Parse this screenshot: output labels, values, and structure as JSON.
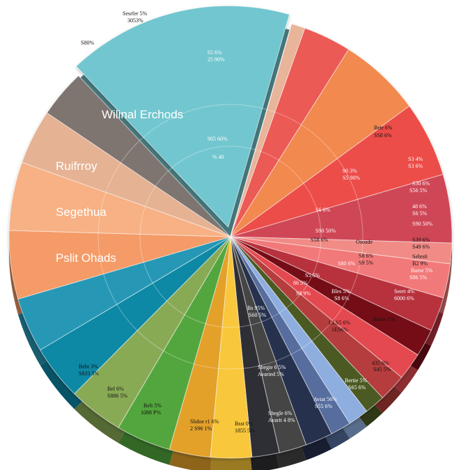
{
  "chart_data": {
    "type": "pie",
    "title": "",
    "slices": [
      {
        "label": "Wilinal Erchods",
        "value": 16.5,
        "color": "#72c6cf"
      },
      {
        "label": "",
        "value": 1.0,
        "color": "#e8b49a"
      },
      {
        "label": "",
        "value": 3.5,
        "color": "#ec5a55"
      },
      {
        "label": "",
        "value": 6.0,
        "color": "#f28950"
      },
      {
        "label": "",
        "value": 5.5,
        "color": "#ec4e4a"
      },
      {
        "label": "",
        "value": 5.0,
        "color": "#cf4757"
      },
      {
        "label": "",
        "value": 1.5,
        "color": "#f08b86"
      },
      {
        "label": "",
        "value": 2.5,
        "color": "#f27979"
      },
      {
        "label": "",
        "value": 2.5,
        "color": "#b8323d"
      },
      {
        "label": "",
        "value": 2.0,
        "color": "#750d18"
      },
      {
        "label": "",
        "value": 2.0,
        "color": "#e44a4f"
      },
      {
        "label": "",
        "value": 2.0,
        "color": "#b53c3c"
      },
      {
        "label": "",
        "value": 1.5,
        "color": "#4c5a22"
      },
      {
        "label": "",
        "value": 1.5,
        "color": "#8eaee0"
      },
      {
        "label": "",
        "value": 1.5,
        "color": "#566d9e"
      },
      {
        "label": "",
        "value": 2.0,
        "color": "#25304d"
      },
      {
        "label": "",
        "value": 2.0,
        "color": "#444444"
      },
      {
        "label": "",
        "value": 2.0,
        "color": "#2e2e34"
      },
      {
        "label": "",
        "value": 3.0,
        "color": "#f8c73a"
      },
      {
        "label": "",
        "value": 3.0,
        "color": "#e3a12a"
      },
      {
        "label": "",
        "value": 4.0,
        "color": "#52a63e"
      },
      {
        "label": "",
        "value": 4.0,
        "color": "#89aa55"
      },
      {
        "label": "",
        "value": 4.0,
        "color": "#0c88a5"
      },
      {
        "label": "",
        "value": 4.0,
        "color": "#2798b6"
      },
      {
        "label": "",
        "value": 5.0,
        "color": "#f59b67"
      },
      {
        "label": "",
        "value": 5.0,
        "color": "#f7b184"
      },
      {
        "label": "",
        "value": 4.0,
        "color": "#e5b293"
      },
      {
        "label": "",
        "value": 3.5,
        "color": "#7e7470"
      }
    ],
    "texts": {
      "top_left_a": "Sesrfer 5%",
      "top_left_b": "3053%",
      "left_small": "S80%",
      "cyan_1": "Wilinal Erchods",
      "cyan_2": "Ruifrroy",
      "cyan_3": "Segethua",
      "cyan_4": "Pslit Ohads",
      "r1a": "65 6%",
      "r1b": "25 90%",
      "r2a": "905 60%",
      "r2b": "% 40",
      "r3a": "Betr 6%",
      "r3b": "SS8 6%",
      "r4a": "90 3%",
      "r4b": "S5 90%",
      "r5a": "S3 4%",
      "r5b": "S3 6%",
      "r6a": "S30 6%",
      "r6b": "S56 5%",
      "r7a": "48 6%",
      "r7b": "S6 5%",
      "r8a": "S6 6%",
      "r8b": "S90 50%",
      "r9a": "Osoade",
      "r9b": "S39 6%",
      "r10a": "S58 6%",
      "r10b": "S49 6%",
      "r11a": "S8 6%",
      "r11b": "S9 5%",
      "r12a": "Sebrs6",
      "r12b": "B2 9%",
      "r13a": "Seert 4%",
      "r13b": "6000 6%",
      "r14a": "Burse 5%",
      "r14b": "S86 5%",
      "r15a": "Bles 5%",
      "r15b": "S8 6%",
      "r16a": "1 LS5 6%",
      "r16b": "1ES6%",
      "r17a": "435 6%",
      "r17b": "S45 5%",
      "r18a": "Bertie 5%",
      "r18b": "S65 6%",
      "r19a": "Sbegie 6 5%",
      "r19b": "Avaried 5%",
      "r20a": "Aviat 56%",
      "r20b": "S55 6%",
      "r21a": "Sbegle 6%",
      "r21b": "Avarit 4 8%",
      "r22a": "Bsst 0%",
      "r22b": "1855 5%",
      "r23a": "Sbdoe r1 6%",
      "r23b": "2 S96 1%",
      "r24a": "Belt 5%",
      "r24b": "1088 P%",
      "r25a": "Bel 6%",
      "r25b": "S886 5%",
      "r26a": "Bebt 3%",
      "r26b": "S833 5%",
      "c1a": "Bs 95%",
      "c1b": "S60 5%",
      "c2a": "S5 5%",
      "c2b": "S8 9%",
      "c3a": "86 5%",
      "c3b": "S80 6%"
    }
  }
}
